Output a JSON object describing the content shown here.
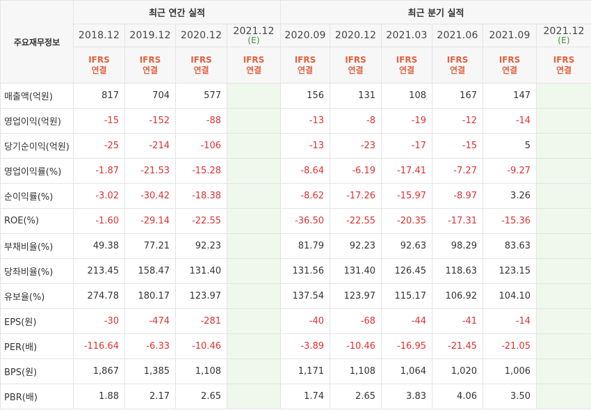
{
  "header": {
    "corner_label": "주요재무정보",
    "annual_group": "최근 연간 실적",
    "quarter_group": "최근 분기 실적"
  },
  "annual_periods": [
    {
      "label": "2018.12",
      "est": ""
    },
    {
      "label": "2019.12",
      "est": ""
    },
    {
      "label": "2020.12",
      "est": ""
    },
    {
      "label": "2021.12",
      "est": "(E)"
    }
  ],
  "quarter_periods": [
    {
      "label": "2020.09",
      "est": ""
    },
    {
      "label": "2020.12",
      "est": ""
    },
    {
      "label": "2021.03",
      "est": ""
    },
    {
      "label": "2021.06",
      "est": ""
    },
    {
      "label": "2021.09",
      "est": ""
    },
    {
      "label": "2021.12",
      "est": "(E)"
    }
  ],
  "standard": {
    "line1": "IFRS",
    "line2": "연결"
  },
  "rows": [
    {
      "label": "매출액(억원)",
      "annual": [
        "817",
        "704",
        "577",
        ""
      ],
      "quarter": [
        "156",
        "131",
        "108",
        "167",
        "147",
        ""
      ]
    },
    {
      "label": "영업이익(억원)",
      "annual": [
        "-15",
        "-152",
        "-88",
        ""
      ],
      "quarter": [
        "-13",
        "-8",
        "-19",
        "-12",
        "-14",
        ""
      ]
    },
    {
      "label": "당기순이익(억원)",
      "annual": [
        "-25",
        "-214",
        "-106",
        ""
      ],
      "quarter": [
        "-13",
        "-23",
        "-17",
        "-15",
        "5",
        ""
      ]
    },
    {
      "label": "영업이익률(%)",
      "annual": [
        "-1.87",
        "-21.53",
        "-15.28",
        ""
      ],
      "quarter": [
        "-8.64",
        "-6.19",
        "-17.41",
        "-7.27",
        "-9.27",
        ""
      ]
    },
    {
      "label": "순이익률(%)",
      "annual": [
        "-3.02",
        "-30.42",
        "-18.38",
        ""
      ],
      "quarter": [
        "-8.62",
        "-17.26",
        "-15.97",
        "-8.97",
        "3.26",
        ""
      ]
    },
    {
      "label": "ROE(%)",
      "annual": [
        "-1.60",
        "-29.14",
        "-22.55",
        ""
      ],
      "quarter": [
        "-36.50",
        "-22.55",
        "-20.35",
        "-17.31",
        "-15.36",
        ""
      ]
    },
    {
      "label": "부채비율(%)",
      "annual": [
        "49.38",
        "77.21",
        "92.23",
        ""
      ],
      "quarter": [
        "81.79",
        "92.23",
        "92.63",
        "98.29",
        "83.63",
        ""
      ]
    },
    {
      "label": "당좌비율(%)",
      "annual": [
        "213.45",
        "158.47",
        "131.40",
        ""
      ],
      "quarter": [
        "131.56",
        "131.40",
        "126.45",
        "118.63",
        "123.15",
        ""
      ]
    },
    {
      "label": "유보율(%)",
      "annual": [
        "274.78",
        "180.17",
        "123.97",
        ""
      ],
      "quarter": [
        "137.54",
        "123.97",
        "115.17",
        "106.92",
        "104.10",
        ""
      ]
    },
    {
      "label": "EPS(원)",
      "annual": [
        "-30",
        "-474",
        "-281",
        ""
      ],
      "quarter": [
        "-40",
        "-68",
        "-44",
        "-41",
        "-14",
        ""
      ]
    },
    {
      "label": "PER(배)",
      "annual": [
        "-116.64",
        "-6.33",
        "-10.46",
        ""
      ],
      "quarter": [
        "-3.89",
        "-10.46",
        "-16.95",
        "-21.45",
        "-21.05",
        ""
      ]
    },
    {
      "label": "BPS(원)",
      "annual": [
        "1,867",
        "1,385",
        "1,108",
        ""
      ],
      "quarter": [
        "1,171",
        "1,108",
        "1,064",
        "1,020",
        "1,006",
        ""
      ]
    },
    {
      "label": "PBR(배)",
      "annual": [
        "1.88",
        "2.17",
        "2.65",
        ""
      ],
      "quarter": [
        "1.74",
        "2.65",
        "3.83",
        "4.06",
        "3.50",
        ""
      ]
    }
  ],
  "colors": {
    "negative": "#e03030",
    "standard": "#e5603d",
    "estimate_bg": "#f0f7ec",
    "header_bg": "#f7f7f7"
  }
}
